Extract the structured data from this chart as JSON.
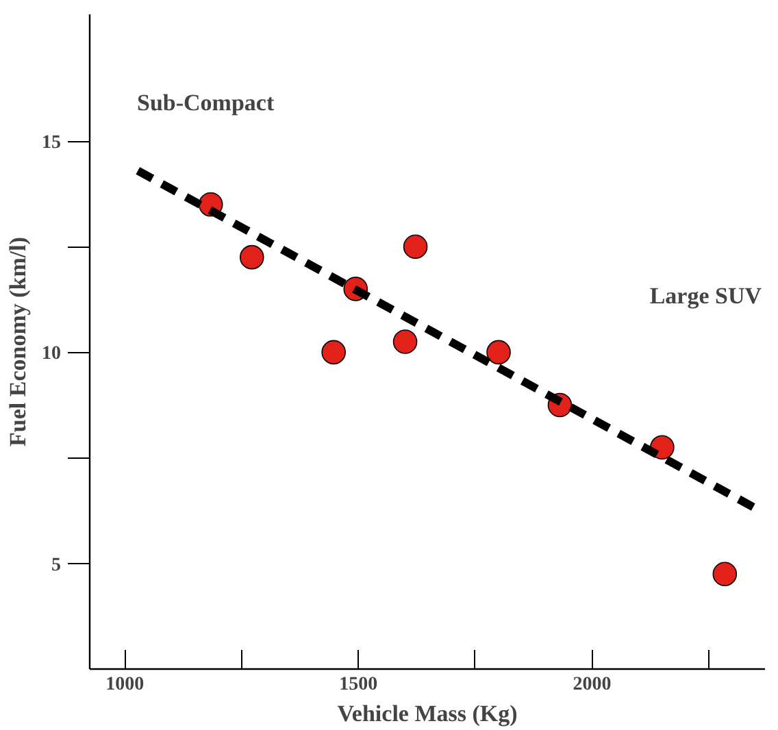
{
  "chart_data": {
    "type": "scatter",
    "xlabel": "Vehicle Mass (Kg)",
    "ylabel": "Fuel Economy (km/l)",
    "xlim": [
      925,
      2370
    ],
    "ylim": [
      2.5,
      18
    ],
    "xticks": [
      1000,
      {
        "value": 1250,
        "label": null
      },
      1500,
      {
        "value": 1750,
        "label": null
      },
      2000,
      {
        "value": 2250,
        "label": null
      }
    ],
    "yticks": [
      5,
      {
        "value": 7.5,
        "label": null
      },
      10,
      {
        "value": 12.5,
        "label": null
      },
      15
    ],
    "grid": false,
    "marker": "circle",
    "series": [
      {
        "color": "#e3211b",
        "x": [
          1184,
          1272,
          1447,
          1494,
          1600,
          1622,
          1800,
          1931,
          2150,
          2284
        ],
        "values": [
          13.5,
          12.25,
          10,
          11.5,
          10.25,
          12.5,
          10,
          8.75,
          7.75,
          4.75
        ]
      },
      {
        "type": "line",
        "color": "#000000",
        "line_style": "dashed",
        "marker": "none",
        "x": [
          1028,
          2359
        ],
        "values": [
          14.3,
          6.25
        ]
      }
    ],
    "annotations": [
      "Sub-Compact",
      "Large SUV"
    ]
  }
}
